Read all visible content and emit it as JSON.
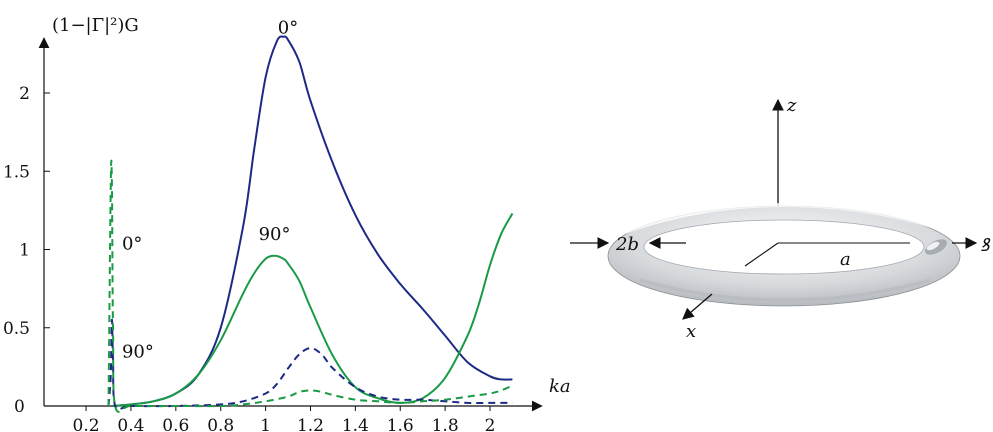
{
  "chart_data": {
    "type": "line",
    "ylabel": "(1−|Γ|²)G",
    "xlabel": "ka",
    "xlim": [
      0.1,
      2.23
    ],
    "ylim": [
      0,
      2.35
    ],
    "x_ticks": [
      "0.2",
      "0.4",
      "0.6",
      "0.8",
      "1",
      "1.2",
      "1.4",
      "1.6",
      "1.8",
      "2"
    ],
    "y_ticks": [
      "0.5",
      "1",
      "1.5",
      "2"
    ],
    "y_zero": "0",
    "grid": false,
    "colors": {
      "navy": "#1c2a85",
      "green": "#1a9a45"
    },
    "series": [
      {
        "color": "navy",
        "dashed": false,
        "x": [
          0.32,
          0.4,
          0.5,
          0.6,
          0.7,
          0.8,
          0.9,
          0.95,
          1.0,
          1.05,
          1.08,
          1.1,
          1.15,
          1.2,
          1.3,
          1.4,
          1.5,
          1.6,
          1.7,
          1.8,
          1.9,
          2.0,
          2.05,
          2.1
        ],
        "y": [
          0.0,
          0.01,
          0.03,
          0.08,
          0.2,
          0.5,
          1.15,
          1.65,
          2.1,
          2.33,
          2.36,
          2.34,
          2.2,
          1.95,
          1.55,
          1.22,
          0.97,
          0.78,
          0.62,
          0.45,
          0.28,
          0.19,
          0.17,
          0.17
        ]
      },
      {
        "color": "green",
        "dashed": false,
        "x": [
          0.32,
          0.4,
          0.5,
          0.6,
          0.7,
          0.8,
          0.9,
          0.95,
          1.0,
          1.04,
          1.08,
          1.1,
          1.15,
          1.2,
          1.3,
          1.4,
          1.5,
          1.6,
          1.7,
          1.8,
          1.9,
          1.95,
          2.0,
          2.05,
          2.1
        ],
        "y": [
          0.0,
          0.01,
          0.03,
          0.08,
          0.2,
          0.42,
          0.72,
          0.85,
          0.94,
          0.96,
          0.94,
          0.91,
          0.8,
          0.63,
          0.32,
          0.12,
          0.05,
          0.02,
          0.05,
          0.18,
          0.45,
          0.65,
          0.9,
          1.1,
          1.23
        ]
      },
      {
        "color": "navy",
        "dashed": true,
        "x": [
          0.3,
          0.31,
          0.315,
          0.32,
          0.33,
          0.4,
          0.6,
          0.8,
          0.9,
          1.0,
          1.05,
          1.1,
          1.15,
          1.2,
          1.25,
          1.3,
          1.4,
          1.5,
          1.6,
          1.7,
          1.8,
          1.9,
          2.0,
          2.1
        ],
        "y": [
          0.0,
          0.2,
          0.55,
          0.3,
          0.0,
          0.0,
          0.0,
          0.01,
          0.03,
          0.08,
          0.14,
          0.24,
          0.33,
          0.37,
          0.33,
          0.24,
          0.12,
          0.06,
          0.04,
          0.04,
          0.03,
          0.02,
          0.02,
          0.02
        ]
      },
      {
        "color": "green",
        "dashed": true,
        "x": [
          0.3,
          0.31,
          0.315,
          0.32,
          0.33,
          0.4,
          0.6,
          0.8,
          0.9,
          1.0,
          1.1,
          1.15,
          1.2,
          1.25,
          1.3,
          1.4,
          1.5,
          1.6,
          1.7,
          1.8,
          1.9,
          2.0,
          2.05,
          2.1
        ],
        "y": [
          0.0,
          1.42,
          1.42,
          0.5,
          0.0,
          0.0,
          0.0,
          0.0,
          0.01,
          0.03,
          0.06,
          0.09,
          0.1,
          0.09,
          0.07,
          0.04,
          0.03,
          0.02,
          0.03,
          0.04,
          0.06,
          0.08,
          0.1,
          0.13
        ]
      }
    ],
    "annotations": [
      {
        "text": "0°",
        "x": 1.1,
        "y": 2.38
      },
      {
        "text": "90°",
        "x": 1.04,
        "y": 1.06
      },
      {
        "text": "0°",
        "x": 0.36,
        "y": 1.0
      },
      {
        "text": "90°",
        "x": 0.36,
        "y": 0.31
      }
    ]
  },
  "diagram": {
    "z_label": "z",
    "x_label": "x",
    "radius_label": "a",
    "thickness_label": "2b",
    "axis_right_label": "ꝸ"
  }
}
